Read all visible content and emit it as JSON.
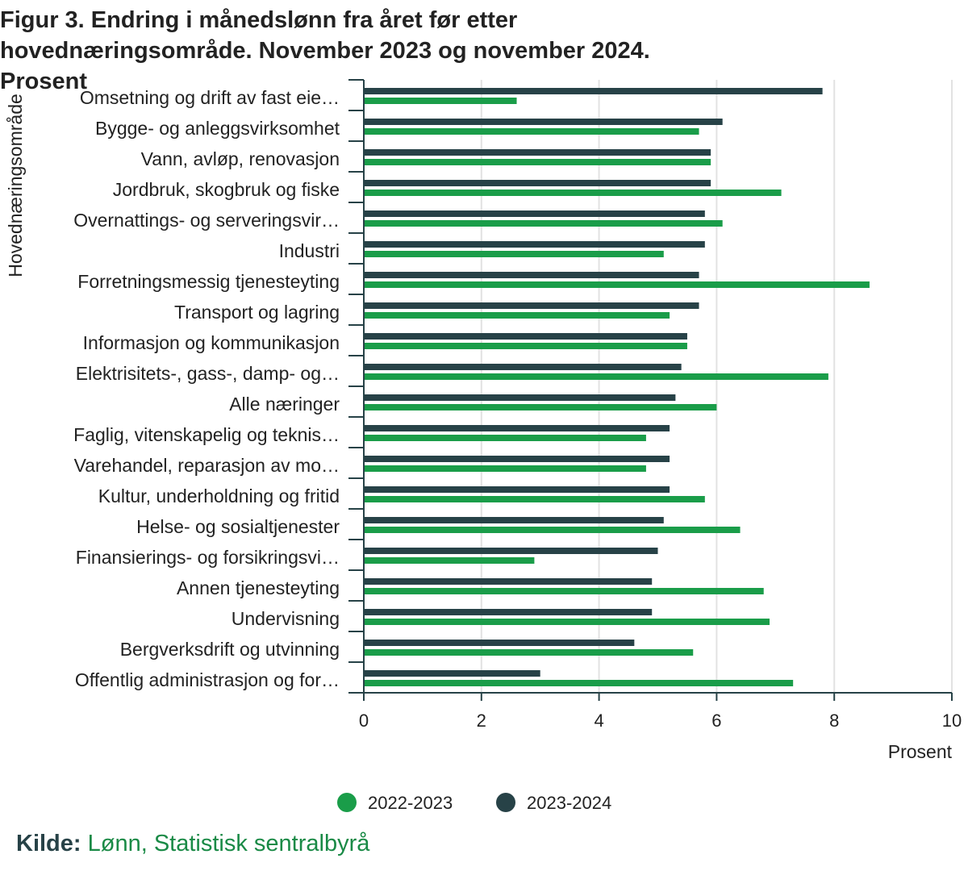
{
  "chart_data": {
    "type": "bar",
    "orientation": "horizontal",
    "title": "Figur 3. Endring i månedslønn fra året før etter hovednæringsområde. November 2023 og november 2024. Prosent",
    "xlabel": "Prosent",
    "ylabel": "Hovednæringsområde",
    "xlim": [
      0,
      10
    ],
    "xticks": [
      0,
      2,
      4,
      6,
      8,
      10
    ],
    "grid": true,
    "legend_position": "bottom",
    "categories": [
      "Omsetning og drift av fast eie…",
      "Bygge- og anleggsvirksomhet",
      "Vann, avløp, renovasjon",
      "Jordbruk, skogbruk og fiske",
      "Overnattings- og serveringsvir…",
      "Industri",
      "Forretningsmessig tjenesteyting",
      "Transport og lagring",
      "Informasjon og kommunikasjon",
      "Elektrisitets-, gass-, damp- og…",
      "Alle næringer",
      "Faglig, vitenskapelig og teknis…",
      "Varehandel, reparasjon av mo…",
      "Kultur, underholdning og fritid",
      "Helse- og sosialtjenester",
      "Finansierings- og forsikringsvi…",
      "Annen tjenesteyting",
      "Undervisning",
      "Bergverksdrift og utvinning",
      "Offentlig administrasjon og for…"
    ],
    "series": [
      {
        "name": "2023-2024",
        "color": "#274247",
        "values": [
          7.8,
          6.1,
          5.9,
          5.9,
          5.8,
          5.8,
          5.7,
          5.7,
          5.5,
          5.4,
          5.3,
          5.2,
          5.2,
          5.2,
          5.1,
          5.0,
          4.9,
          4.9,
          4.6,
          3.0
        ]
      },
      {
        "name": "2022-2023",
        "color": "#1a9d49",
        "values": [
          2.6,
          5.7,
          5.9,
          7.1,
          6.1,
          5.1,
          8.6,
          5.2,
          5.5,
          7.9,
          6.0,
          4.8,
          4.8,
          5.8,
          6.4,
          2.9,
          6.8,
          6.9,
          5.6,
          7.3
        ]
      }
    ],
    "legend": [
      "2022-2023",
      "2023-2024"
    ]
  },
  "source": {
    "label": "Kilde:",
    "link_text": "Lønn, Statistisk sentralbyrå"
  }
}
